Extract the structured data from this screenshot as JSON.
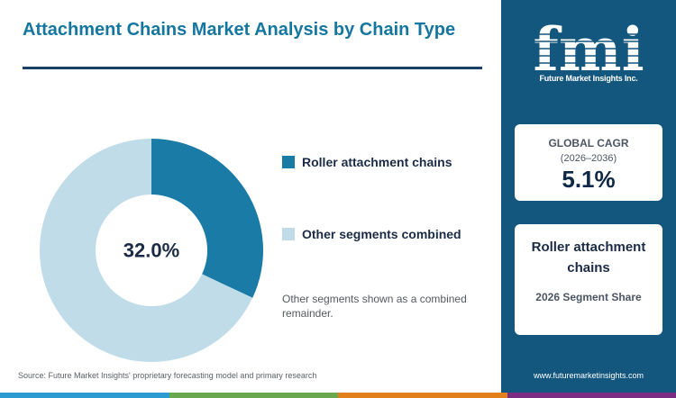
{
  "header": {
    "title": "Attachment Chains Market Analysis by Chain Type"
  },
  "chart_data": {
    "type": "pie",
    "variant": "donut",
    "categories": [
      "Roller attachment chains",
      "Other segments combined"
    ],
    "values": [
      32.0,
      68.0
    ],
    "center_label": "32.0%",
    "legend_placement": "right",
    "colors": [
      "#1a7ba6",
      "#c0dce8"
    ]
  },
  "legend": {
    "items": [
      {
        "label": "Roller attachment chains",
        "color": "#1a7ba6"
      },
      {
        "label": "Other segments combined",
        "color": "#c0dce8"
      }
    ]
  },
  "note": "Other segments shown as a combined remainder.",
  "source": "Source: Future Market Insights' proprietary forecasting model and primary research",
  "sidebar": {
    "logo_text": "fmi",
    "logo_subtitle": "Future Market Insights Inc.",
    "cagr": {
      "label": "GLOBAL CAGR",
      "period": "(2026–2036)",
      "value": "5.1%"
    },
    "segment": {
      "name": "Roller attachment chains",
      "caption": "2026 Segment Share"
    },
    "website": "www.futuremarketinsights.com"
  },
  "colors": {
    "accent": "#15779f",
    "sidebar_bg": "#13577f",
    "bottom_bar": [
      "#2c9bd1",
      "#6aa84f",
      "#e2801c",
      "#7b2d83"
    ]
  }
}
